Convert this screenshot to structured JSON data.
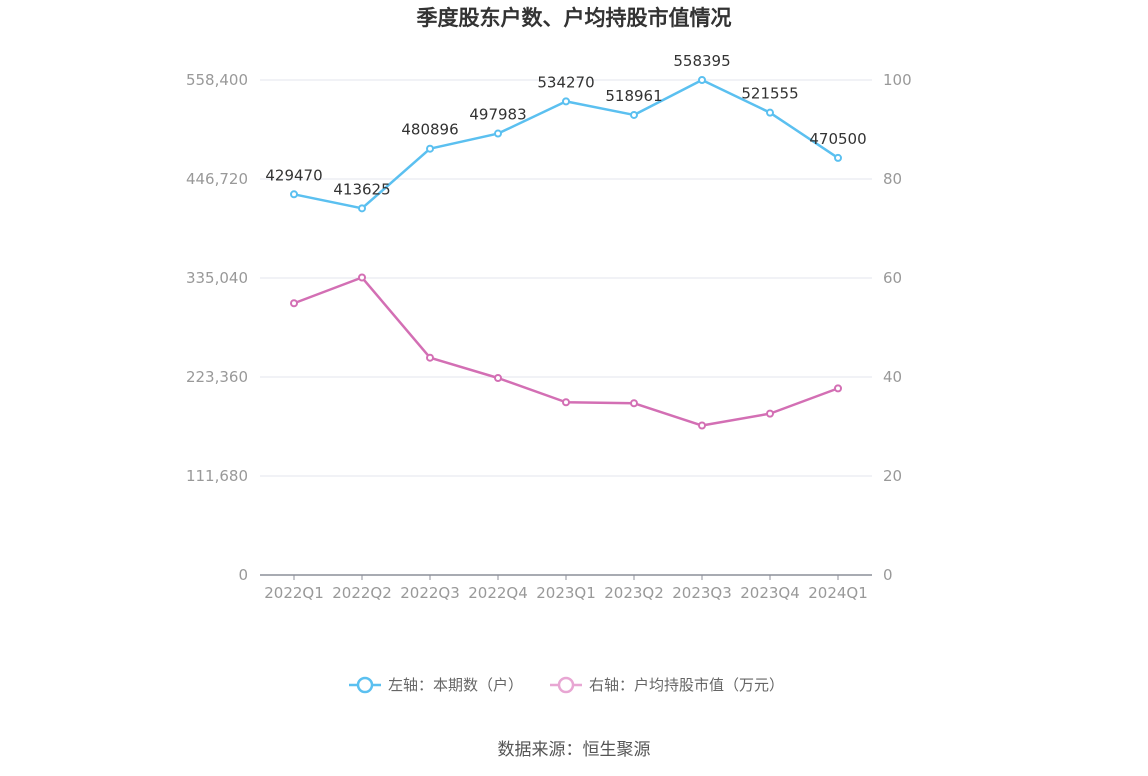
{
  "chart_data": {
    "type": "line",
    "title": "季度股东户数、户均持股市值情况",
    "categories": [
      "2022Q1",
      "2022Q2",
      "2022Q3",
      "2022Q4",
      "2023Q1",
      "2023Q2",
      "2023Q3",
      "2023Q4",
      "2024Q1"
    ],
    "left_axis": {
      "ticks": [
        "0",
        "111,680",
        "223,360",
        "335,040",
        "446,720",
        "558,400"
      ],
      "range": [
        0,
        558400
      ]
    },
    "right_axis": {
      "ticks": [
        "0",
        "20",
        "40",
        "60",
        "80",
        "100"
      ],
      "range": [
        0,
        100
      ]
    },
    "series": [
      {
        "name": "左轴：本期数（户）",
        "axis": "left",
        "color": "#5bc0f0",
        "values": [
          429470,
          413625,
          480896,
          497983,
          534270,
          518961,
          558395,
          521555,
          470500
        ],
        "labels": [
          "429470",
          "413625",
          "480896",
          "497983",
          "534270",
          "518961",
          "558395",
          "521555",
          "470500"
        ]
      },
      {
        "name": "右轴：户均持股市值（万元）",
        "axis": "right",
        "color": "#d36fb4",
        "values": [
          54.9,
          60.1,
          43.9,
          39.8,
          34.9,
          34.7,
          30.2,
          32.6,
          37.7
        ]
      }
    ],
    "grid": true,
    "legend_position": "bottom"
  },
  "source": "数据来源：恒生聚源"
}
